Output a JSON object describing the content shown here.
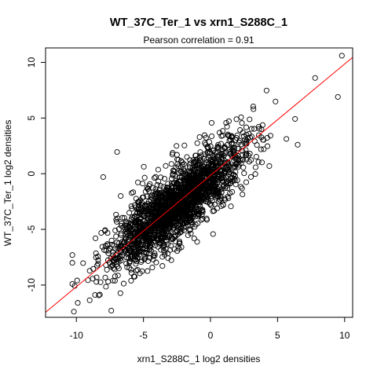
{
  "chart_data": {
    "type": "scatter",
    "title": "WT_37C_Ter_1 vs xrn1_S288C_1",
    "subtitle": "Pearson correlation =  0.91",
    "xlabel": "xrn1_S288C_1 log2 densities",
    "ylabel": "WT_37C_Ter_1 log2 densities",
    "xlim": [
      -12.3,
      10.6
    ],
    "ylim": [
      -12.9,
      11.3
    ],
    "x_ticks": [
      -10,
      -5,
      0,
      5,
      10
    ],
    "y_ticks": [
      -10,
      -5,
      0,
      5,
      10
    ],
    "x_tick_labels": [
      "-10",
      "-5",
      "0",
      "5",
      "10"
    ],
    "y_tick_labels": [
      "-10",
      "-5",
      "0",
      "5",
      "10"
    ],
    "grid": false,
    "legend": "none",
    "point_color": "#000000",
    "fit_line": {
      "color": "#ff0000",
      "slope": 1.0,
      "intercept": -0.15
    },
    "trend": {
      "slope": 0.92,
      "intercept": -0.45,
      "spread": 1.4,
      "x_range": [
        -10.3,
        9.8
      ],
      "n_points": 2200
    },
    "outliers": [
      {
        "x": 9.8,
        "y": 10.6
      },
      {
        "x": 9.5,
        "y": 6.9
      },
      {
        "x": -10.3,
        "y": -9.9
      },
      {
        "x": -8.0,
        "y": -0.3
      },
      {
        "x": -9.9,
        "y": -11.6
      },
      {
        "x": -2.5,
        "y": 1.7
      },
      {
        "x": 7.8,
        "y": 8.6
      },
      {
        "x": -7.4,
        "y": -12.3
      },
      {
        "x": 3.2,
        "y": 5.8
      },
      {
        "x": 6.5,
        "y": 2.6
      }
    ]
  }
}
